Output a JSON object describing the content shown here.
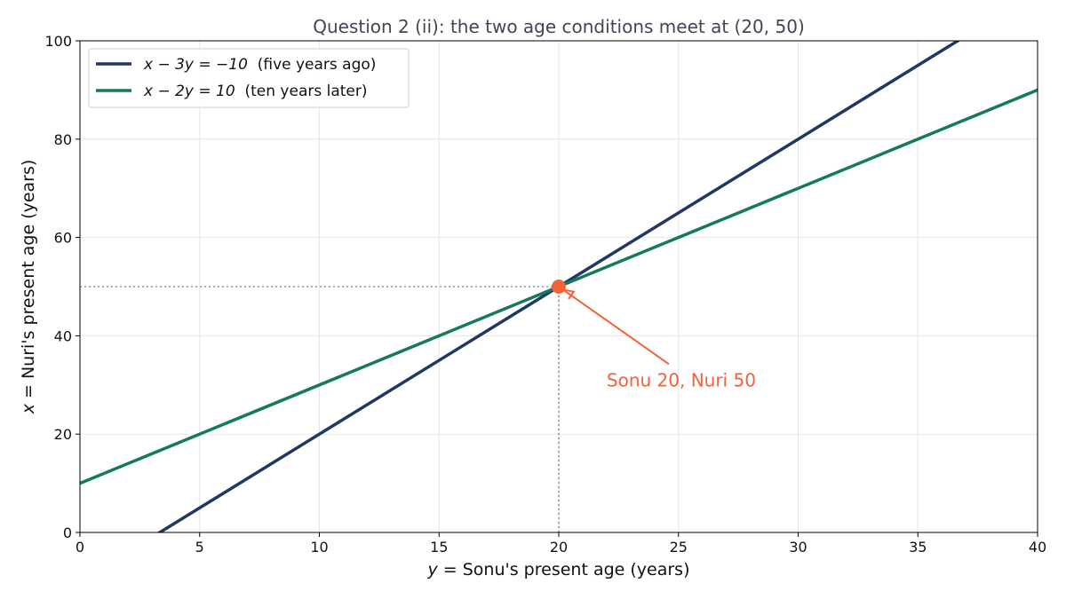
{
  "chart_data": {
    "type": "line",
    "title": "Question 2 (ii): the two age conditions meet at (20, 50)",
    "xlabel_var": "y",
    "xlabel_rest": " = Sonu's present age (years)",
    "ylabel_var": "x",
    "ylabel_rest": " = Nuri's present age (years)",
    "xlim": [
      0,
      40
    ],
    "ylim": [
      0,
      100
    ],
    "xticks": [
      0,
      5,
      10,
      15,
      20,
      25,
      30,
      35,
      40
    ],
    "yticks": [
      0,
      20,
      40,
      60,
      80,
      100
    ],
    "grid": true,
    "legend_position": "top-left",
    "series": [
      {
        "name": "x − 3y = −10  (five years ago)",
        "name_math": "x − 3y = −10",
        "name_note": "  (five years ago)",
        "color": "#1f3864",
        "x": [
          0,
          40
        ],
        "y": [
          -10,
          110
        ]
      },
      {
        "name": "x − 2y = 10  (ten years later)",
        "name_math": "x − 2y = 10",
        "name_note": "  (ten years later)",
        "color": "#147a5a",
        "x": [
          0,
          40
        ],
        "y": [
          10,
          90
        ]
      }
    ],
    "intersection": {
      "x": 20,
      "y": 50,
      "color": "#f4623a"
    },
    "annotation": {
      "text": "Sonu 20, Nuri 50",
      "color": "#f4623a",
      "x": 22,
      "y": 31
    },
    "guide_color": "#8a93a0"
  }
}
